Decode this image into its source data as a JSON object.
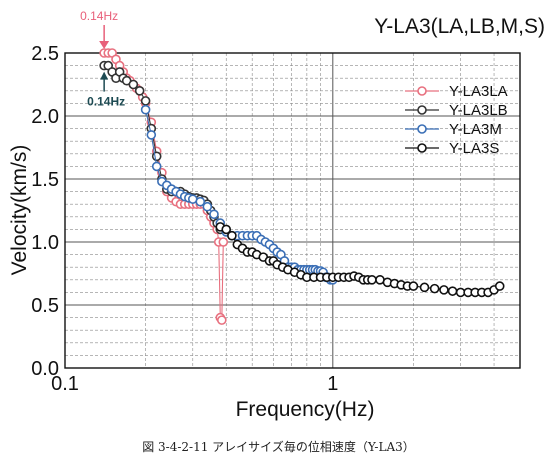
{
  "chart_data": {
    "type": "scatter",
    "title": "Y-LA3(LA,LB,M,S)",
    "xlabel": "Frequency(Hz)",
    "ylabel": "Velocity(km/s)",
    "xscale": "log",
    "xlim": [
      0.1,
      5
    ],
    "ylim": [
      0.0,
      2.5
    ],
    "x_ticks": [
      0.1,
      1
    ],
    "x_tick_labels": [
      "0.1",
      "1"
    ],
    "y_ticks": [
      0.0,
      0.5,
      1.0,
      1.5,
      2.0,
      2.5
    ],
    "y_tick_labels": [
      "0.0",
      "0.5",
      "1.0",
      "1.5",
      "2.0",
      "2.5"
    ],
    "grid": true,
    "legend_position": "top-right",
    "annotations": [
      {
        "text": "0.14Hz",
        "x": 0.14,
        "y": 2.5,
        "color": "#e8607a",
        "position": "above",
        "arrow": "down"
      },
      {
        "text": "0.14Hz",
        "x": 0.14,
        "y": 2.4,
        "color": "#1c4a52",
        "position": "below",
        "arrow": "up"
      }
    ],
    "series": [
      {
        "name": "Y-LA3LA",
        "color": "#e8707f",
        "points": [
          [
            0.14,
            2.5
          ],
          [
            0.145,
            2.5
          ],
          [
            0.15,
            2.5
          ],
          [
            0.155,
            2.45
          ],
          [
            0.16,
            2.4
          ],
          [
            0.165,
            2.35
          ],
          [
            0.17,
            2.3
          ],
          [
            0.175,
            2.28
          ],
          [
            0.18,
            2.25
          ],
          [
            0.185,
            2.22
          ],
          [
            0.19,
            2.2
          ],
          [
            0.195,
            2.15
          ],
          [
            0.2,
            2.1
          ],
          [
            0.21,
            1.95
          ],
          [
            0.22,
            1.72
          ],
          [
            0.23,
            1.55
          ],
          [
            0.24,
            1.4
          ],
          [
            0.25,
            1.35
          ],
          [
            0.26,
            1.32
          ],
          [
            0.27,
            1.3
          ],
          [
            0.28,
            1.3
          ],
          [
            0.29,
            1.3
          ],
          [
            0.3,
            1.3
          ],
          [
            0.31,
            1.3
          ],
          [
            0.32,
            1.3
          ],
          [
            0.33,
            1.3
          ],
          [
            0.34,
            1.25
          ],
          [
            0.35,
            1.2
          ],
          [
            0.36,
            1.15
          ],
          [
            0.37,
            1.1
          ],
          [
            0.375,
            1.0
          ],
          [
            0.38,
            0.4
          ],
          [
            0.385,
            0.38
          ],
          [
            0.39,
            1.0
          ]
        ]
      },
      {
        "name": "Y-LA3LB",
        "color": "#333333",
        "points": [
          [
            0.14,
            2.4
          ],
          [
            0.145,
            2.4
          ],
          [
            0.15,
            2.35
          ],
          [
            0.155,
            2.3
          ],
          [
            0.16,
            2.35
          ],
          [
            0.165,
            2.3
          ],
          [
            0.17,
            2.28
          ],
          [
            0.18,
            2.25
          ],
          [
            0.19,
            2.2
          ],
          [
            0.2,
            2.12
          ],
          [
            0.21,
            1.9
          ],
          [
            0.22,
            1.68
          ],
          [
            0.23,
            1.5
          ],
          [
            0.24,
            1.42
          ],
          [
            0.25,
            1.4
          ],
          [
            0.26,
            1.4
          ],
          [
            0.27,
            1.4
          ],
          [
            0.28,
            1.38
          ],
          [
            0.29,
            1.36
          ],
          [
            0.3,
            1.35
          ],
          [
            0.31,
            1.35
          ],
          [
            0.32,
            1.34
          ],
          [
            0.33,
            1.33
          ],
          [
            0.34,
            1.3
          ],
          [
            0.35,
            1.25
          ],
          [
            0.36,
            1.2
          ],
          [
            0.37,
            1.15
          ],
          [
            0.38,
            1.1
          ]
        ]
      },
      {
        "name": "Y-LA3M",
        "color": "#3b6fb6",
        "points": [
          [
            0.2,
            2.05
          ],
          [
            0.21,
            1.85
          ],
          [
            0.22,
            1.6
          ],
          [
            0.23,
            1.48
          ],
          [
            0.24,
            1.45
          ],
          [
            0.25,
            1.42
          ],
          [
            0.26,
            1.4
          ],
          [
            0.27,
            1.38
          ],
          [
            0.28,
            1.36
          ],
          [
            0.29,
            1.35
          ],
          [
            0.3,
            1.34
          ],
          [
            0.32,
            1.32
          ],
          [
            0.34,
            1.28
          ],
          [
            0.36,
            1.22
          ],
          [
            0.38,
            1.15
          ],
          [
            0.4,
            1.08
          ],
          [
            0.42,
            1.05
          ],
          [
            0.44,
            1.05
          ],
          [
            0.46,
            1.05
          ],
          [
            0.48,
            1.05
          ],
          [
            0.5,
            1.05
          ],
          [
            0.52,
            1.05
          ],
          [
            0.54,
            1.02
          ],
          [
            0.56,
            1.0
          ],
          [
            0.58,
            0.98
          ],
          [
            0.6,
            0.95
          ],
          [
            0.62,
            0.92
          ],
          [
            0.64,
            0.9
          ],
          [
            0.66,
            0.85
          ],
          [
            0.68,
            0.8
          ],
          [
            0.7,
            0.8
          ],
          [
            0.72,
            0.8
          ],
          [
            0.74,
            0.78
          ],
          [
            0.76,
            0.78
          ],
          [
            0.78,
            0.78
          ],
          [
            0.8,
            0.78
          ],
          [
            0.82,
            0.78
          ],
          [
            0.84,
            0.78
          ],
          [
            0.86,
            0.78
          ],
          [
            0.88,
            0.77
          ],
          [
            0.9,
            0.77
          ],
          [
            0.92,
            0.76
          ],
          [
            0.94,
            0.72
          ],
          [
            0.96,
            0.72
          ],
          [
            0.98,
            0.7
          ],
          [
            1.0,
            0.7
          ]
        ]
      },
      {
        "name": "Y-LA3S",
        "color": "#111111",
        "points": [
          [
            0.38,
            1.12
          ],
          [
            0.4,
            1.1
          ],
          [
            0.42,
            1.05
          ],
          [
            0.44,
            0.98
          ],
          [
            0.46,
            0.95
          ],
          [
            0.48,
            0.92
          ],
          [
            0.5,
            0.92
          ],
          [
            0.52,
            0.9
          ],
          [
            0.55,
            0.88
          ],
          [
            0.58,
            0.85
          ],
          [
            0.6,
            0.85
          ],
          [
            0.62,
            0.82
          ],
          [
            0.65,
            0.8
          ],
          [
            0.68,
            0.78
          ],
          [
            0.72,
            0.76
          ],
          [
            0.76,
            0.74
          ],
          [
            0.8,
            0.72
          ],
          [
            0.85,
            0.72
          ],
          [
            0.9,
            0.72
          ],
          [
            0.95,
            0.72
          ],
          [
            1.0,
            0.72
          ],
          [
            1.05,
            0.72
          ],
          [
            1.1,
            0.72
          ],
          [
            1.15,
            0.72
          ],
          [
            1.2,
            0.73
          ],
          [
            1.25,
            0.72
          ],
          [
            1.3,
            0.7
          ],
          [
            1.35,
            0.7
          ],
          [
            1.4,
            0.7
          ],
          [
            1.5,
            0.7
          ],
          [
            1.6,
            0.68
          ],
          [
            1.7,
            0.67
          ],
          [
            1.8,
            0.66
          ],
          [
            1.9,
            0.65
          ],
          [
            2.0,
            0.65
          ],
          [
            2.2,
            0.64
          ],
          [
            2.4,
            0.63
          ],
          [
            2.6,
            0.62
          ],
          [
            2.8,
            0.61
          ],
          [
            3.0,
            0.6
          ],
          [
            3.2,
            0.6
          ],
          [
            3.4,
            0.6
          ],
          [
            3.6,
            0.6
          ],
          [
            3.8,
            0.6
          ],
          [
            4.0,
            0.62
          ],
          [
            4.2,
            0.65
          ]
        ]
      }
    ]
  },
  "caption": "図 3-4-2-11 アレイサイズ毎の位相速度（Y-LA3）"
}
